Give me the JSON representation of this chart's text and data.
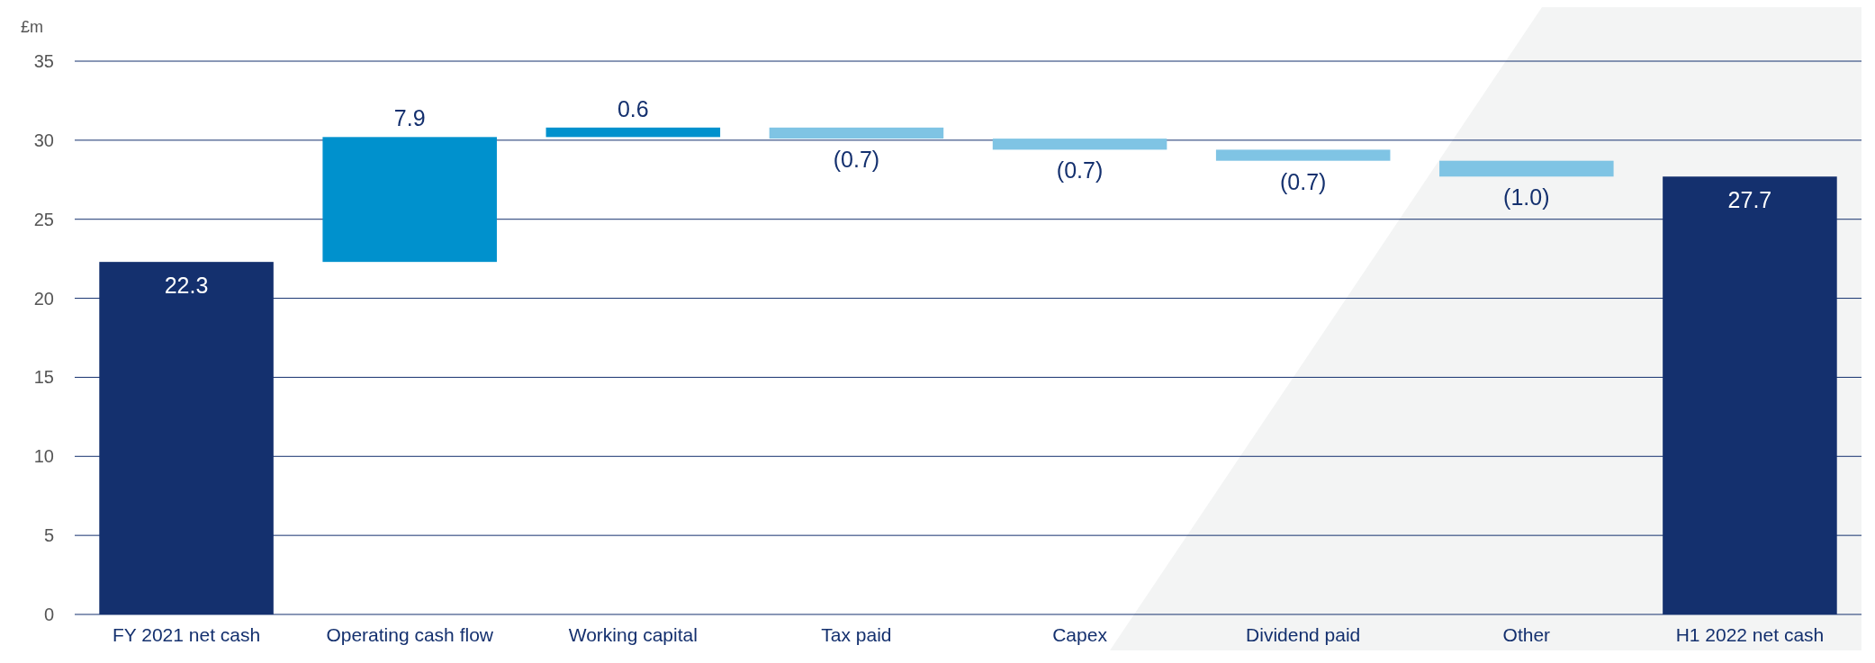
{
  "chart_data": {
    "type": "bar",
    "ylabel": "£m",
    "categories": [
      "FY 2021 net cash",
      "Operating cash flow",
      "Working capital",
      "Tax paid",
      "Capex",
      "Dividend paid",
      "Other",
      "H1 2022 net cash"
    ],
    "values": [
      22.3,
      7.9,
      0.6,
      -0.7,
      -0.7,
      -0.7,
      -1.0,
      27.7
    ],
    "base": [
      0,
      22.3,
      30.2,
      30.8,
      30.1,
      29.4,
      28.7,
      0
    ],
    "colors": [
      "#14306e",
      "#0091cd",
      "#0091cd",
      "#7fc4e4",
      "#7fc4e4",
      "#7fc4e4",
      "#7fc4e4",
      "#14306e"
    ],
    "value_labels": [
      "22.3",
      "7.9",
      "0.6",
      "(0.7)",
      "(0.7)",
      "(0.7)",
      "(1.0)",
      "27.7"
    ],
    "ylim": [
      0,
      35
    ],
    "yticks": [
      0,
      5,
      10,
      15,
      20,
      25,
      30,
      35
    ],
    "grid": "y"
  }
}
